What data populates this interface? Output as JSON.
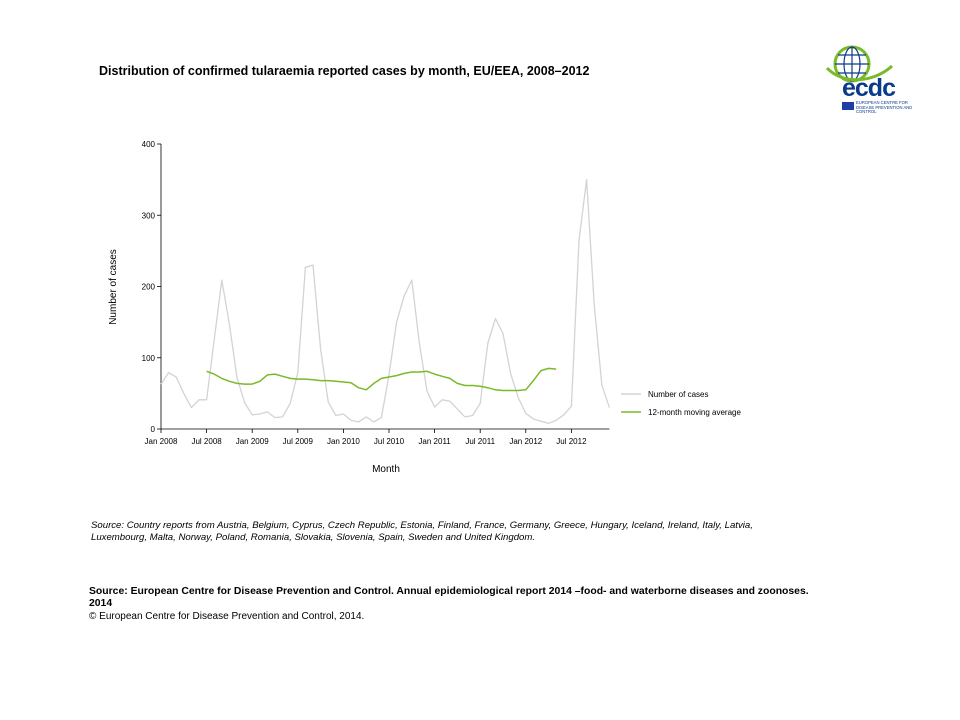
{
  "title": "Distribution  of confirmed  tularaemia  reported cases by month, EU/EEA,  2008–2012",
  "logo": {
    "text": "ecdc",
    "subtitle": "EUROPEAN CENTRE FOR DISEASE PREVENTION AND CONTROL",
    "colors": {
      "blue": "#0a3b8a",
      "green": "#7ab929",
      "flag": "#1f3fa6"
    }
  },
  "chart_data": {
    "type": "line",
    "xlabel": "Month",
    "ylabel": "Number of cases",
    "ylim": [
      0,
      400
    ],
    "yticks": [
      0,
      100,
      200,
      300,
      400
    ],
    "x_tick_labels": [
      "Jan 2008",
      "Jul 2008",
      "Jan 2009",
      "Jul 2009",
      "Jan 2010",
      "Jul 2010",
      "Jan 2011",
      "Jul 2011",
      "Jan 2012",
      "Jul 2012"
    ],
    "x_tick_index": [
      0,
      6,
      12,
      18,
      24,
      30,
      36,
      42,
      48,
      54
    ],
    "months_count": 60,
    "legend_position": "right",
    "series": [
      {
        "name": "Number of cases",
        "color": "#d3d3d3",
        "start_index": 0,
        "values": [
          63,
          79,
          73,
          50,
          30,
          41,
          41,
          125,
          209,
          147,
          72,
          37,
          20,
          21,
          24,
          16,
          17,
          36,
          79,
          227,
          230,
          112,
          38,
          19,
          21,
          12,
          10,
          17,
          10,
          16,
          76,
          150,
          187,
          209,
          120,
          53,
          31,
          41,
          39,
          28,
          17,
          19,
          36,
          120,
          155,
          134,
          78,
          44,
          22,
          14,
          11,
          8,
          12,
          20,
          32,
          265,
          350,
          175,
          62,
          30
        ]
      },
      {
        "name": "12-month moving average",
        "color": "#7ab929",
        "start_index": 6,
        "values": [
          81,
          77,
          71,
          67,
          64,
          63,
          63,
          67,
          76,
          77,
          74,
          71,
          70,
          70,
          69,
          68,
          68,
          67,
          66,
          65,
          58,
          55,
          64,
          71,
          73,
          75,
          78,
          80,
          80,
          81,
          77,
          74,
          71,
          64,
          61,
          61,
          60,
          58,
          55,
          54,
          54,
          54,
          55,
          68,
          82,
          85,
          84
        ]
      }
    ]
  },
  "source_note": "Source: Country reports from Austria, Belgium, Cyprus, Czech Republic, Estonia, Finland, France, Germany, Greece, Hungary, Iceland, Ireland, Italy, Latvia, Luxembourg, Malta, Norway, Poland, Romania, Slovakia, Slovenia, Spain, Sweden and United Kingdom.",
  "citation": "Source: European Centre for Disease Prevention and Control.  Annual epidemiological report 2014 –food- and waterborne diseases and zoonoses. 2014",
  "copyright": "© European Centre for Disease Prevention and Control, 2014."
}
